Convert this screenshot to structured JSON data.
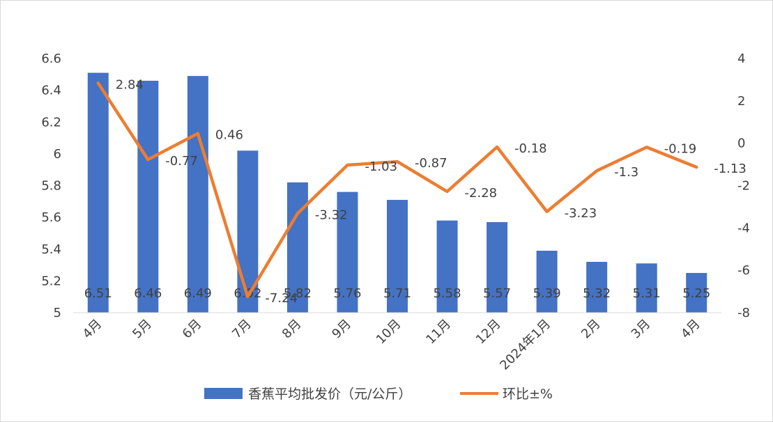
{
  "chart_data": {
    "type": "bar",
    "categories": [
      "4月",
      "5月",
      "6月",
      "7月",
      "8月",
      "9月",
      "10月",
      "11月",
      "12月",
      "2024年1月",
      "2月",
      "3月",
      "4月"
    ],
    "series": [
      {
        "name": "香蕉平均批发价（元/公斤）",
        "type": "bar",
        "axis": "left",
        "color": "#4472c4",
        "values": [
          6.51,
          6.46,
          6.49,
          6.02,
          5.82,
          5.76,
          5.71,
          5.58,
          5.57,
          5.39,
          5.32,
          5.31,
          5.25
        ],
        "labels": [
          "6.51",
          "6.46",
          "6.49",
          "6.02",
          "5.82",
          "5.76",
          "5.71",
          "5.58",
          "5.57",
          "5.39",
          "5.32",
          "5.31",
          "5.25"
        ]
      },
      {
        "name": "环比±%",
        "type": "line",
        "axis": "right",
        "color": "#ed7d31",
        "values": [
          2.84,
          -0.77,
          0.46,
          -7.24,
          -3.32,
          -1.03,
          -0.87,
          -2.28,
          -0.18,
          -3.23,
          -1.3,
          -0.19,
          -1.13
        ],
        "labels": [
          "2.84",
          "-0.77",
          "0.46",
          "-7.24",
          "-3.32",
          "-1.03",
          "-0.87",
          "-2.28",
          "-0.18",
          "-3.23",
          "-1.3",
          "-0.19",
          "-1.13"
        ]
      }
    ],
    "y_left": {
      "range": [
        5,
        6.6
      ],
      "ticks": [
        "6.6",
        "6.4",
        "6.2",
        "6",
        "5.8",
        "5.6",
        "5.4",
        "5.2",
        "5"
      ]
    },
    "y_right": {
      "range": [
        -8,
        4
      ],
      "ticks": [
        "4",
        "2",
        "0",
        "-2",
        "-4",
        "-6",
        "-8"
      ]
    },
    "grid": false,
    "legend_position": "bottom"
  }
}
